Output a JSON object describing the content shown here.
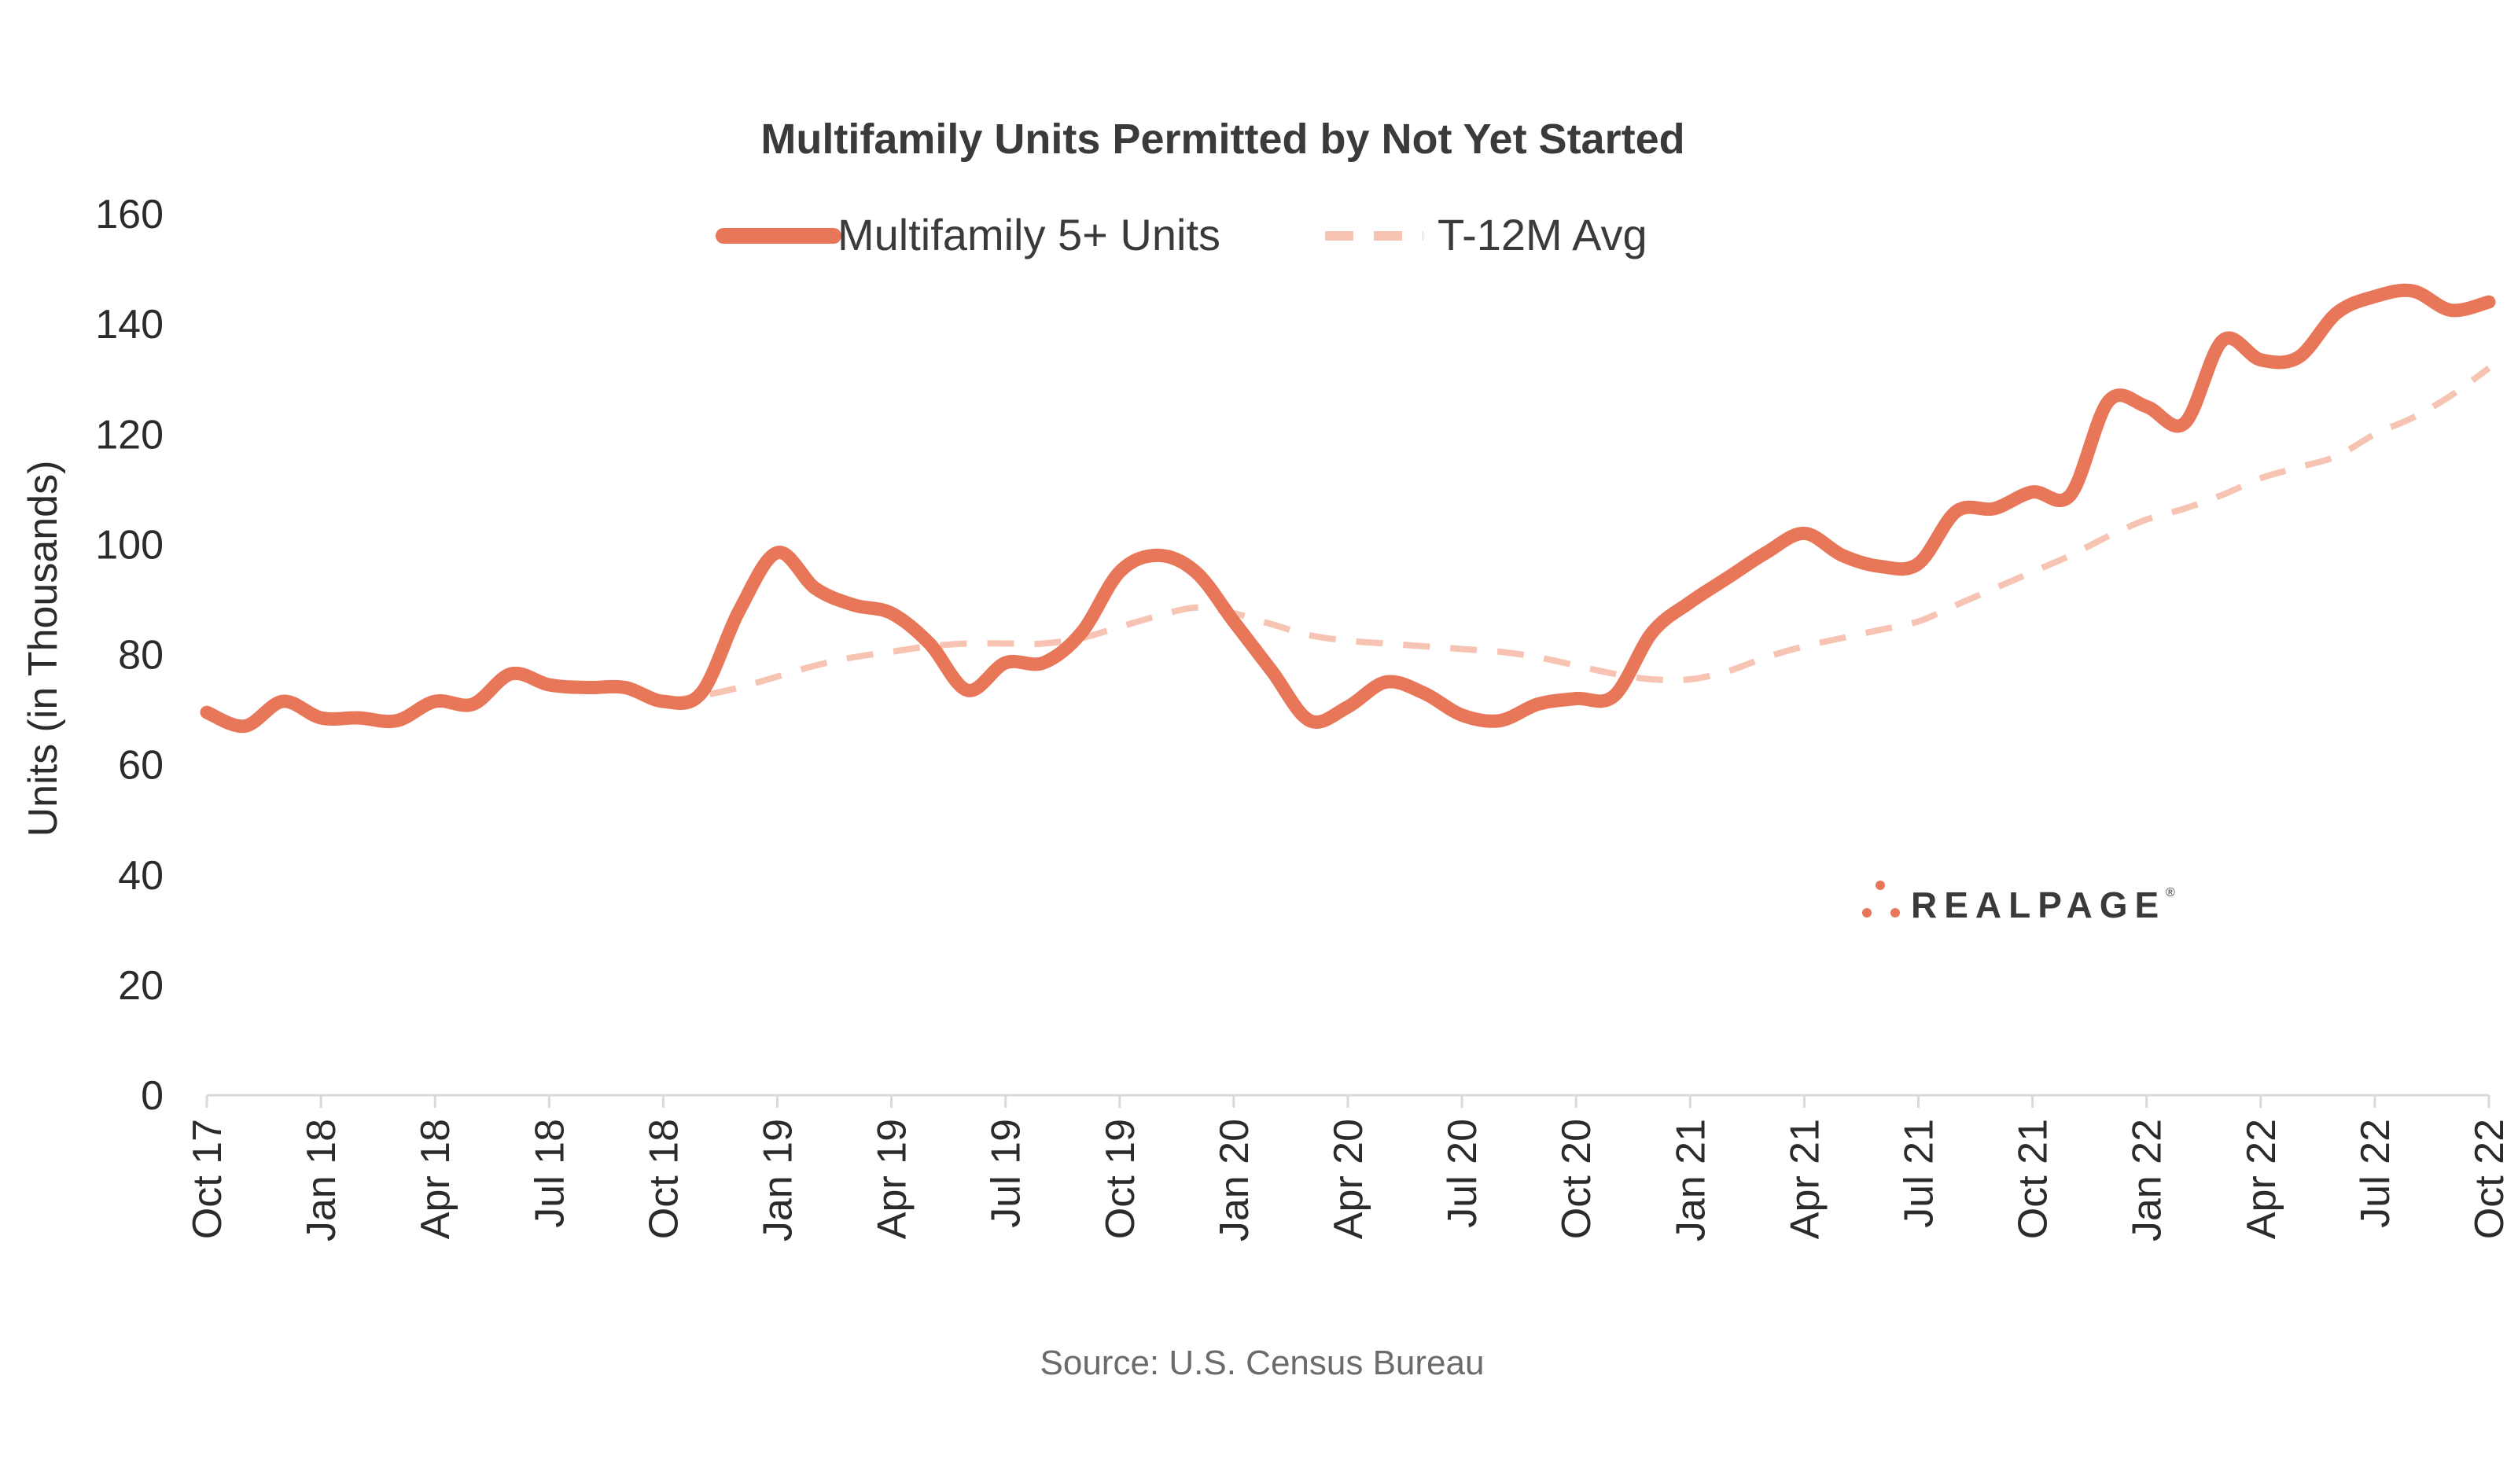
{
  "chart_data": {
    "type": "line",
    "title": "Multifamily Units Permitted by Not Yet Started",
    "ylabel": "Units (in Thousands)",
    "xlabel": "",
    "ylim": [
      0,
      160
    ],
    "yticks": [
      0,
      20,
      40,
      60,
      80,
      100,
      120,
      140,
      160
    ],
    "x_tick_labels": [
      "Oct 17",
      "Jan 18",
      "Apr 18",
      "Jul 18",
      "Oct 18",
      "Jan 19",
      "Apr 19",
      "Jul 19",
      "Oct 19",
      "Jan 20",
      "Apr 20",
      "Jul 20",
      "Oct 20",
      "Jan 21",
      "Apr 21",
      "Jul 21",
      "Oct 21",
      "Jan 22",
      "Apr 22",
      "Jul 22",
      "Oct 22"
    ],
    "x": [
      "Oct 17",
      "Nov 17",
      "Dec 17",
      "Jan 18",
      "Feb 18",
      "Mar 18",
      "Apr 18",
      "May 18",
      "Jun 18",
      "Jul 18",
      "Aug 18",
      "Sep 18",
      "Oct 18",
      "Nov 18",
      "Dec 18",
      "Jan 19",
      "Feb 19",
      "Mar 19",
      "Apr 19",
      "May 19",
      "Jun 19",
      "Jul 19",
      "Aug 19",
      "Sep 19",
      "Oct 19",
      "Nov 19",
      "Dec 19",
      "Jan 20",
      "Feb 20",
      "Mar 20",
      "Apr 20",
      "May 20",
      "Jun 20",
      "Jul 20",
      "Aug 20",
      "Sep 20",
      "Oct 20",
      "Nov 20",
      "Dec 20",
      "Jan 21",
      "Feb 21",
      "Mar 21",
      "Apr 21",
      "May 21",
      "Jun 21",
      "Jul 21",
      "Aug 21",
      "Sep 21",
      "Oct 21",
      "Nov 21",
      "Dec 21",
      "Jan 22",
      "Feb 22",
      "Mar 22",
      "Apr 22",
      "May 22",
      "Jun 22",
      "Jul 22",
      "Aug 22",
      "Sep 22",
      "Oct 22"
    ],
    "series": [
      {
        "name": "Multifamily 5+ Units",
        "color": "#e8775a",
        "style": "solid",
        "values": [
          69.5,
          67,
          71.5,
          68.5,
          68.5,
          68,
          71.5,
          71,
          76.5,
          74.5,
          74,
          74,
          71.5,
          73,
          88,
          98.5,
          92,
          89,
          87.5,
          82,
          73.5,
          78.5,
          78.5,
          84,
          95,
          98,
          95,
          86,
          77,
          68,
          70.5,
          75,
          73,
          69,
          68,
          71,
          72,
          72.5,
          84,
          89.5,
          94,
          98.5,
          102,
          98,
          96,
          96.5,
          106,
          106.5,
          109.5,
          109,
          126,
          125,
          122,
          137,
          133.5,
          134,
          142,
          145,
          146,
          142.5,
          144
        ]
      },
      {
        "name": "T-12M Avg",
        "color": "#f7c4b3",
        "style": "dashed",
        "values": [
          null,
          null,
          null,
          null,
          null,
          null,
          null,
          null,
          null,
          null,
          null,
          null,
          71.5,
          72.5,
          74,
          76,
          78,
          79.5,
          80.5,
          81.5,
          82,
          82,
          82,
          83,
          85,
          87,
          88.5,
          87.5,
          85.5,
          83.5,
          82.5,
          82,
          81.5,
          81,
          80.5,
          79.5,
          78,
          76.5,
          75.5,
          75.5,
          77,
          79.5,
          81.5,
          83,
          84.5,
          86,
          89,
          92,
          95,
          98,
          101.5,
          104.5,
          106.5,
          109,
          112,
          114,
          116,
          120,
          123,
          127,
          132
        ]
      }
    ],
    "legend_position": "top-center",
    "grid": false
  },
  "footer": {
    "source": "Source: U.S. Census Bureau"
  },
  "logo": {
    "text": "REALPAGE",
    "mark": "®"
  }
}
